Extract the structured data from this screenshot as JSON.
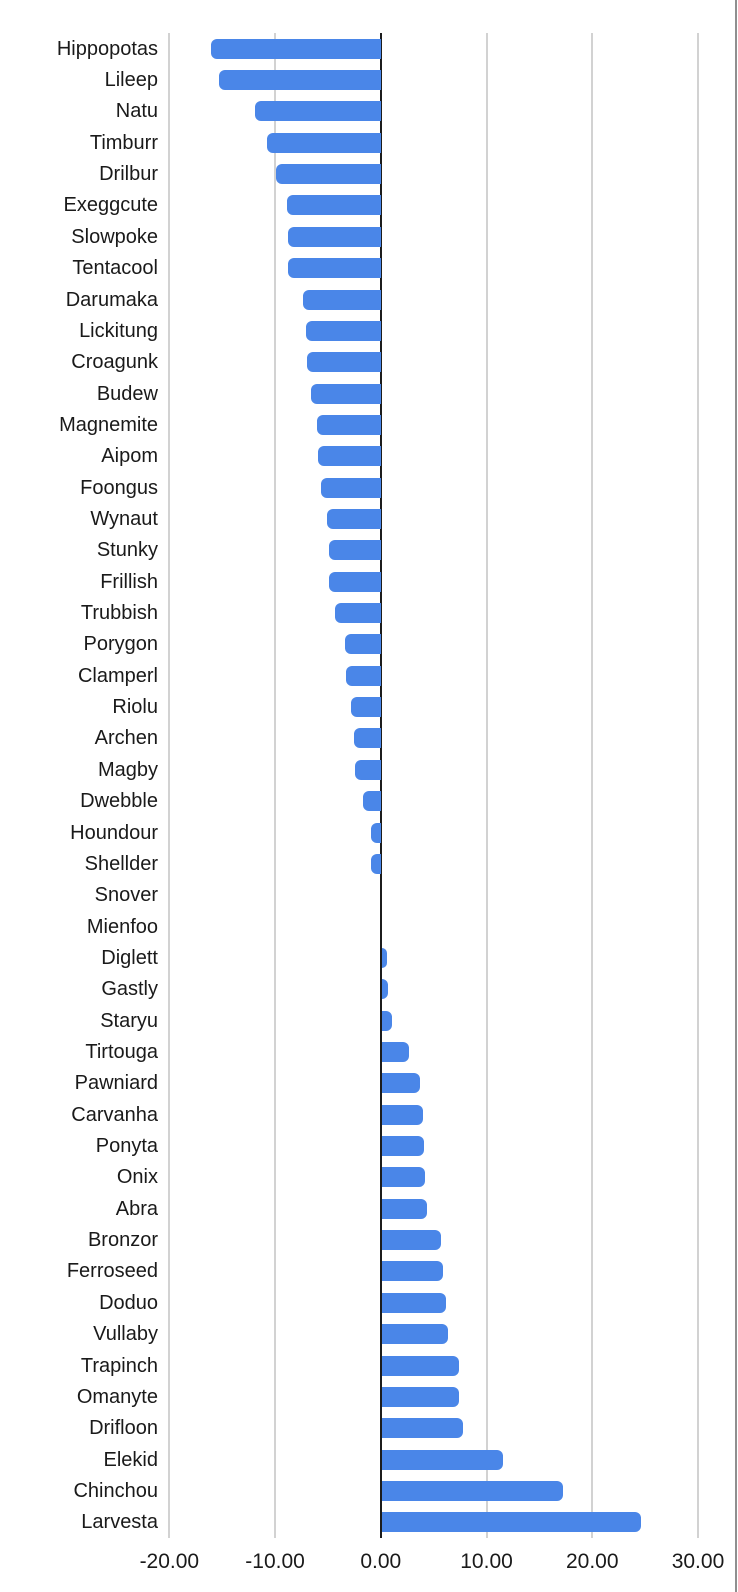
{
  "page": {
    "background": "#ffffff",
    "right_border_color": "#8f8f8f"
  },
  "chart_data": {
    "type": "bar",
    "orientation": "horizontal",
    "title": "",
    "xlabel": "",
    "ylabel": "",
    "grid": true,
    "legend": false,
    "xlim": [
      -20.6,
      33.5
    ],
    "bar_color": "#4a86e8",
    "gridline_color": "#d2d2d2",
    "zero_axis_color": "#1c1c1c",
    "text_color": "#1a1a1a",
    "x_ticks": [
      {
        "label": "-20.00",
        "value": -20
      },
      {
        "label": "-10.00",
        "value": -10
      },
      {
        "label": "0.00",
        "value": 0
      },
      {
        "label": "10.00",
        "value": 10
      },
      {
        "label": "20.00",
        "value": 20
      },
      {
        "label": "30.00",
        "value": 30
      }
    ],
    "categories": [
      "Hippopotas",
      "Lileep",
      "Natu",
      "Timburr",
      "Drilbur",
      "Exeggcute",
      "Slowpoke",
      "Tentacool",
      "Darumaka",
      "Lickitung",
      "Croagunk",
      "Budew",
      "Magnemite",
      "Aipom",
      "Foongus",
      "Wynaut",
      "Stunky",
      "Frillish",
      "Trubbish",
      "Porygon",
      "Clamperl",
      "Riolu",
      "Archen",
      "Magby",
      "Dwebble",
      "Houndour",
      "Shellder",
      "Snover",
      "Mienfoo",
      "Diglett",
      "Gastly",
      "Staryu",
      "Tirtouga",
      "Pawniard",
      "Carvanha",
      "Ponyta",
      "Onix",
      "Abra",
      "Bronzor",
      "Ferroseed",
      "Doduo",
      "Vullaby",
      "Trapinch",
      "Omanyte",
      "Drifloon",
      "Elekid",
      "Chinchou",
      "Larvesta"
    ],
    "values": [
      -16.1,
      -15.3,
      -11.9,
      -10.8,
      -9.9,
      -8.9,
      -8.8,
      -8.8,
      -7.4,
      -7.1,
      -7.0,
      -6.6,
      -6.0,
      -5.9,
      -5.7,
      -5.1,
      -4.9,
      -4.9,
      -4.3,
      -3.4,
      -3.3,
      -2.8,
      -2.5,
      -2.4,
      -1.7,
      -0.9,
      -0.9,
      0.0,
      0.0,
      0.5,
      0.6,
      1.0,
      2.6,
      3.6,
      3.9,
      4.0,
      4.1,
      4.3,
      5.6,
      5.8,
      6.1,
      6.3,
      7.3,
      7.3,
      7.7,
      11.5,
      17.1,
      24.5
    ]
  }
}
